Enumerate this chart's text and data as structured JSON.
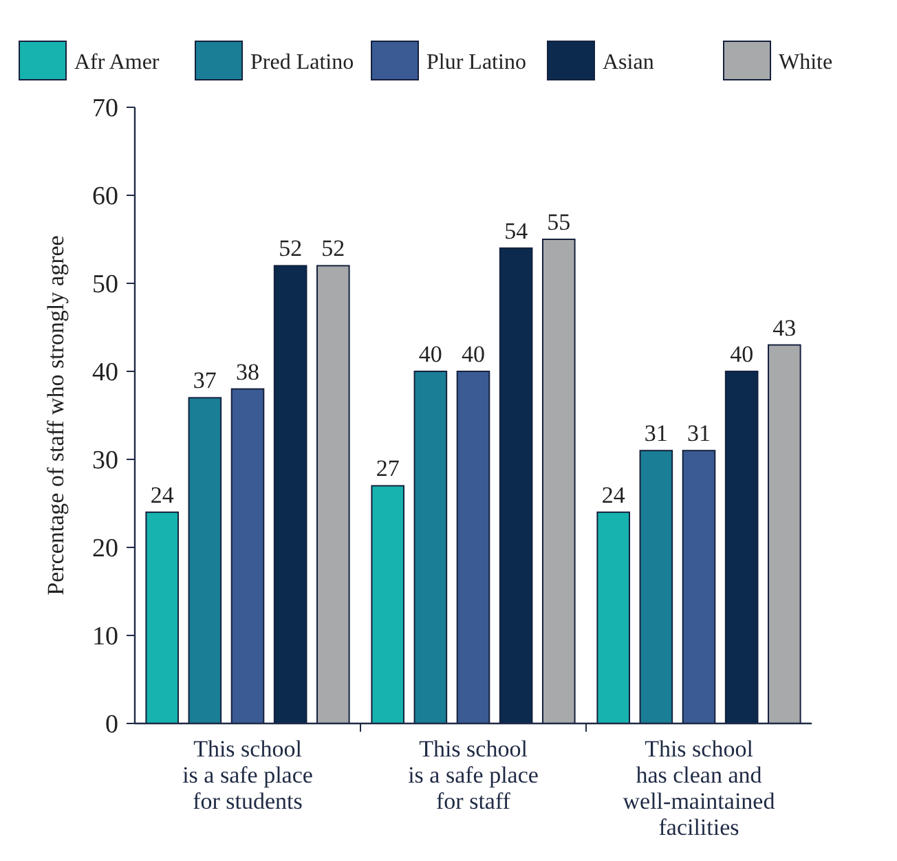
{
  "chart_data": {
    "type": "bar",
    "ylabel": "Percentage of staff who strongly agree",
    "categories": [
      "This school\nis a safe place\nfor students",
      "This school\nis a safe place\nfor staff",
      "This school\nhas clean and\nwell-maintained\nfacilities"
    ],
    "series": [
      {
        "name": "Afr Amer",
        "color": "#17b3ae",
        "values": [
          24,
          27,
          24
        ]
      },
      {
        "name": "Pred Latino",
        "color": "#1a7e96",
        "values": [
          37,
          40,
          31
        ]
      },
      {
        "name": "Plur Latino",
        "color": "#3b5b94",
        "values": [
          38,
          40,
          31
        ]
      },
      {
        "name": "Asian",
        "color": "#0b2a4e",
        "values": [
          52,
          54,
          40
        ]
      },
      {
        "name": "White",
        "color": "#a8a9ab",
        "values": [
          52,
          55,
          43
        ]
      }
    ],
    "ylim": [
      0,
      70
    ],
    "yticks": [
      0,
      10,
      20,
      30,
      40,
      50,
      60,
      70
    ],
    "data_labels": true,
    "legend": "top",
    "grid": false
  }
}
